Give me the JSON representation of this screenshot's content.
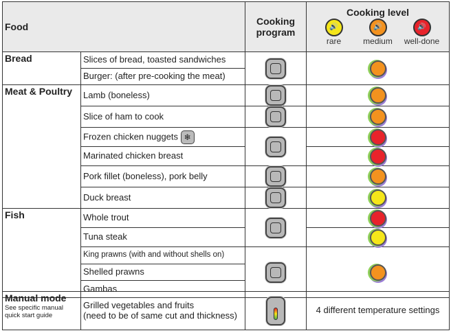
{
  "colors": {
    "rare": "#f5e61a",
    "medium": "#f3921f",
    "well_done": "#e8232b",
    "header_bg": "#eaeaea"
  },
  "header": {
    "food": "Food",
    "program": "Cooking program",
    "level": "Cooking level",
    "levels": [
      "rare",
      "medium",
      "well-done"
    ]
  },
  "categories": {
    "bread": "Bread",
    "meat": "Meat & Poultry",
    "fish": "Fish",
    "manual": "Manual mode",
    "manual_note": "See specific manual quick start guide"
  },
  "items": {
    "bread1": "Slices of bread, toasted sandwiches",
    "bread2": "Burger: (after pre-cooking the meat)",
    "lamb": "Lamb (boneless)",
    "ham": "Slice of ham to cook",
    "nuggets": "Frozen chicken nuggets",
    "marinated": "Marinated chicken breast",
    "pork": "Pork fillet (boneless), pork belly",
    "duck": "Duck breast",
    "trout": "Whole trout",
    "tuna": "Tuna steak",
    "king": "King prawns (with and without shells on)",
    "shelled": "Shelled prawns",
    "gambas": "Gambas",
    "manual1": "Grilled vegetables and fruits",
    "manual2": "(need to be of same cut and thickness)",
    "manual_level": "4 different temperature settings"
  },
  "icons": {
    "frozen": "snowflake-icon",
    "program_bread": "bread-program-icon",
    "program_burger": "burger-program-icon",
    "program_ham": "ham-program-icon",
    "program_poultry": "poultry-program-icon",
    "program_pork": "pork-program-icon",
    "program_fish": "fish-program-icon",
    "program_seafood": "seafood-program-icon",
    "program_manual": "temp-control-icon"
  },
  "level_assignments": {
    "bread": "medium",
    "lamb": "medium",
    "ham": "medium",
    "nuggets": "well-done",
    "marinated": "well-done",
    "pork": "medium",
    "duck": "rare",
    "trout": "well-done",
    "tuna": "rare",
    "prawns": "medium"
  }
}
